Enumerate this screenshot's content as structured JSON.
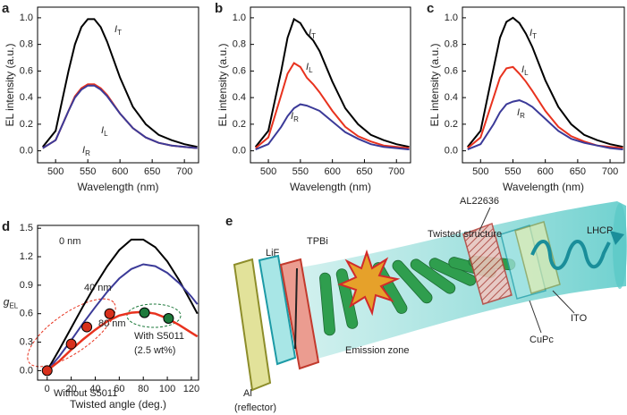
{
  "chart_data": [
    {
      "type": "line",
      "panel": "a",
      "xlabel": "Wavelength (nm)",
      "ylabel": "EL intensity (a.u.)",
      "xlim": [
        472,
        722
      ],
      "ylim": [
        -0.09,
        1.08
      ],
      "xticks": [
        500,
        550,
        600,
        650,
        700
      ],
      "yticks": [
        {
          "value": 0,
          "label": "0.0"
        },
        {
          "value": 0.2,
          "label": "0.2"
        },
        {
          "value": 0.4,
          "label": "0.4"
        },
        {
          "value": 0.6,
          "label": "0.6"
        },
        {
          "value": 0.8,
          "label": "0.8"
        },
        {
          "value": 1,
          "label": "1.0"
        }
      ],
      "x": [
        480,
        500,
        520,
        530,
        540,
        550,
        560,
        570,
        580,
        600,
        620,
        640,
        660,
        680,
        700,
        720
      ],
      "series": [
        {
          "name": "IT",
          "color": "#000000",
          "values": [
            0.03,
            0.15,
            0.6,
            0.8,
            0.93,
            0.99,
            0.99,
            0.93,
            0.82,
            0.55,
            0.33,
            0.2,
            0.12,
            0.08,
            0.05,
            0.03
          ]
        },
        {
          "name": "IL",
          "color": "#e8321e",
          "values": [
            0.02,
            0.08,
            0.3,
            0.41,
            0.47,
            0.5,
            0.5,
            0.47,
            0.42,
            0.28,
            0.17,
            0.1,
            0.06,
            0.04,
            0.03,
            0.02
          ]
        },
        {
          "name": "IR",
          "color": "#3b3a98",
          "values": [
            0.02,
            0.08,
            0.3,
            0.4,
            0.46,
            0.49,
            0.49,
            0.46,
            0.41,
            0.28,
            0.17,
            0.1,
            0.06,
            0.04,
            0.03,
            0.02
          ]
        }
      ]
    },
    {
      "type": "line",
      "panel": "b",
      "xlabel": "Wavelength (nm)",
      "ylabel": "EL intensity (a.u.)",
      "xlim": [
        472,
        722
      ],
      "ylim": [
        -0.09,
        1.08
      ],
      "xticks": [
        500,
        550,
        600,
        650,
        700
      ],
      "yticks": [
        {
          "value": 0,
          "label": "0.0"
        },
        {
          "value": 0.2,
          "label": "0.2"
        },
        {
          "value": 0.4,
          "label": "0.4"
        },
        {
          "value": 0.6,
          "label": "0.6"
        },
        {
          "value": 0.8,
          "label": "0.8"
        },
        {
          "value": 1,
          "label": "1.0"
        }
      ],
      "x": [
        480,
        500,
        520,
        530,
        540,
        550,
        560,
        570,
        580,
        600,
        620,
        640,
        660,
        680,
        700,
        720
      ],
      "series": [
        {
          "name": "IT",
          "color": "#000000",
          "values": [
            0.03,
            0.15,
            0.6,
            0.85,
            0.99,
            0.96,
            0.88,
            0.83,
            0.75,
            0.52,
            0.32,
            0.2,
            0.12,
            0.08,
            0.05,
            0.03
          ]
        },
        {
          "name": "IL",
          "color": "#e8321e",
          "values": [
            0.02,
            0.1,
            0.42,
            0.58,
            0.66,
            0.63,
            0.55,
            0.5,
            0.44,
            0.3,
            0.18,
            0.11,
            0.07,
            0.04,
            0.03,
            0.02
          ]
        },
        {
          "name": "IR",
          "color": "#3b3a98",
          "values": [
            0.01,
            0.05,
            0.18,
            0.26,
            0.32,
            0.35,
            0.34,
            0.32,
            0.3,
            0.22,
            0.14,
            0.09,
            0.05,
            0.03,
            0.02,
            0.01
          ]
        }
      ]
    },
    {
      "type": "line",
      "panel": "c",
      "xlabel": "Wavelength (nm)",
      "ylabel": "EL intensity (a.u.)",
      "xlim": [
        472,
        722
      ],
      "ylim": [
        -0.09,
        1.08
      ],
      "xticks": [
        500,
        550,
        600,
        650,
        700
      ],
      "yticks": [
        {
          "value": 0,
          "label": "0.0"
        },
        {
          "value": 0.2,
          "label": "0.2"
        },
        {
          "value": 0.4,
          "label": "0.4"
        },
        {
          "value": 0.6,
          "label": "0.6"
        },
        {
          "value": 0.8,
          "label": "0.8"
        },
        {
          "value": 1,
          "label": "1.0"
        }
      ],
      "x": [
        480,
        500,
        520,
        530,
        540,
        550,
        560,
        570,
        580,
        600,
        620,
        640,
        660,
        680,
        700,
        720
      ],
      "series": [
        {
          "name": "IT",
          "color": "#000000",
          "values": [
            0.03,
            0.15,
            0.62,
            0.85,
            0.97,
            1.0,
            0.96,
            0.88,
            0.78,
            0.53,
            0.33,
            0.2,
            0.12,
            0.08,
            0.05,
            0.03
          ]
        },
        {
          "name": "IL",
          "color": "#e8321e",
          "values": [
            0.02,
            0.1,
            0.4,
            0.55,
            0.62,
            0.63,
            0.58,
            0.52,
            0.45,
            0.3,
            0.18,
            0.11,
            0.07,
            0.04,
            0.03,
            0.02
          ]
        },
        {
          "name": "IR",
          "color": "#3b3a98",
          "values": [
            0.01,
            0.05,
            0.2,
            0.29,
            0.35,
            0.37,
            0.38,
            0.36,
            0.33,
            0.24,
            0.15,
            0.09,
            0.06,
            0.04,
            0.02,
            0.01
          ]
        }
      ]
    },
    {
      "type": "line",
      "panel": "d",
      "xlabel": "Twisted angle (deg.)",
      "ylabel": "gEL",
      "xlim": [
        -8,
        126
      ],
      "ylim": [
        -0.1,
        1.53
      ],
      "xticks": [
        0,
        20,
        40,
        60,
        80,
        100,
        120
      ],
      "yticks": [
        {
          "value": 0,
          "label": "0.0"
        },
        {
          "value": 0.3,
          "label": "0.3"
        },
        {
          "value": 0.6,
          "label": "0.6"
        },
        {
          "value": 0.9,
          "label": "0.9"
        },
        {
          "value": 1.2,
          "label": "1.2"
        },
        {
          "value": 1.5,
          "label": "1.5"
        }
      ],
      "x": [
        0,
        10,
        20,
        30,
        40,
        50,
        60,
        70,
        80,
        90,
        100,
        110,
        120,
        125
      ],
      "series": [
        {
          "color": "#000000",
          "values": [
            0,
            0.22,
            0.45,
            0.68,
            0.9,
            1.1,
            1.27,
            1.38,
            1.38,
            1.3,
            1.15,
            0.95,
            0.72,
            0.6
          ]
        },
        {
          "color": "#3b3a98",
          "values": [
            0,
            0.15,
            0.32,
            0.5,
            0.67,
            0.83,
            0.97,
            1.07,
            1.12,
            1.1,
            1.03,
            0.92,
            0.78,
            0.7
          ]
        },
        {
          "color": "#e8321e",
          "values": [
            0,
            0.1,
            0.22,
            0.33,
            0.43,
            0.52,
            0.58,
            0.61,
            0.62,
            0.6,
            0.55,
            0.48,
            0.4,
            0.36
          ]
        }
      ],
      "markers": {
        "x": [
          0,
          20,
          33,
          52,
          81,
          101
        ],
        "values": [
          0,
          0.28,
          0.46,
          0.6,
          0.61,
          0.55
        ],
        "colors": [
          "#d8301c",
          "#d8301c",
          "#d8301c",
          "#d8301c",
          "#1e7a3c",
          "#1e7a3c"
        ]
      },
      "annotations": [
        {
          "text": "0 nm",
          "color": "#000000"
        },
        {
          "text": "40 nm",
          "color": "#3b3a98"
        },
        {
          "text": "80 nm",
          "color": "#e8321e"
        },
        {
          "text": "Without S5011",
          "color": "#e8321e"
        },
        {
          "text": "With S5011",
          "color": "#1e7a3c"
        },
        {
          "text": "(2.5 wt%)",
          "color": "#1e7a3c"
        }
      ]
    }
  ],
  "diagram": {
    "panel": "e",
    "labels": [
      "LiF",
      "TPBi",
      "AL22636",
      "Twisted structure",
      "LHCP",
      "Al",
      "(reflector)",
      "Emission zone",
      "CuPc",
      "ITO"
    ]
  }
}
